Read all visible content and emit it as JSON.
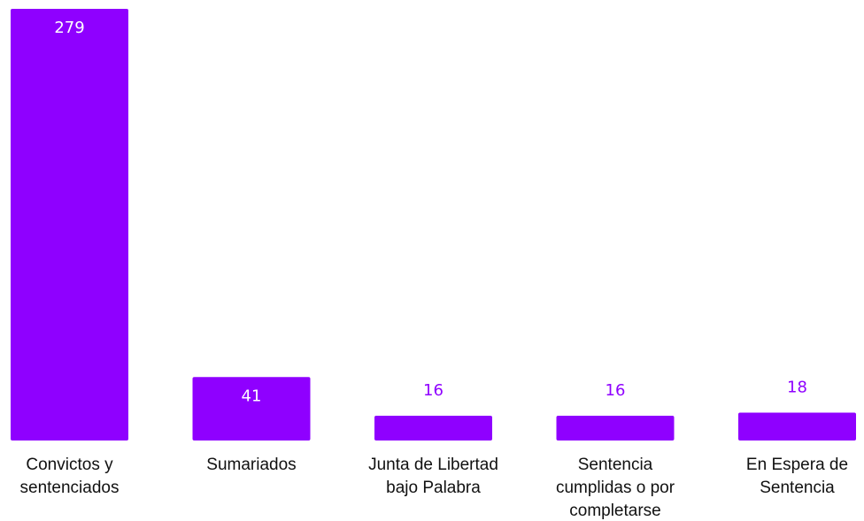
{
  "chart_data": {
    "type": "bar",
    "categories": [
      [
        "Convictos y",
        "sentenciados"
      ],
      [
        "Sumariados"
      ],
      [
        "Junta de Libertad",
        "bajo Palabra"
      ],
      [
        "Sentencia",
        "cumplidas o por",
        "completarse"
      ],
      [
        "En Espera de",
        "Sentencia"
      ]
    ],
    "values": [
      279,
      41,
      16,
      16,
      18
    ],
    "value_labels": [
      "279",
      "41",
      "16",
      "16",
      "18"
    ],
    "ylim": [
      0,
      279
    ],
    "grid": false,
    "legend": "none",
    "bar_color": "#8f00ff",
    "label_inside_color": "#ffffff",
    "label_outside_color": "#8f00ff"
  }
}
